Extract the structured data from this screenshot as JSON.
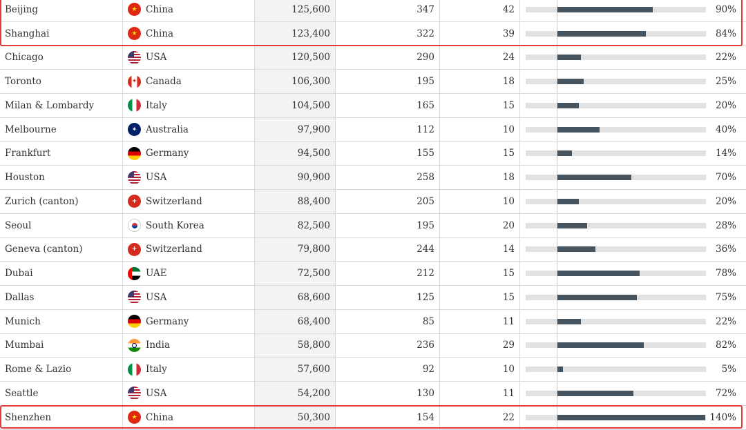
{
  "rows": [
    {
      "city": "Beijing",
      "country": "China",
      "flag": "china-flag-icon",
      "pop": "125,600",
      "n1": "347",
      "n2": "42",
      "pct_value": 90,
      "pct": "90%"
    },
    {
      "city": "Shanghai",
      "country": "China",
      "flag": "china-flag-icon",
      "pop": "123,400",
      "n1": "322",
      "n2": "39",
      "pct_value": 84,
      "pct": "84%"
    },
    {
      "city": "Chicago",
      "country": "USA",
      "flag": "usa-flag-icon",
      "pop": "120,500",
      "n1": "290",
      "n2": "24",
      "pct_value": 22,
      "pct": "22%"
    },
    {
      "city": "Toronto",
      "country": "Canada",
      "flag": "canada-flag-icon",
      "pop": "106,300",
      "n1": "195",
      "n2": "18",
      "pct_value": 25,
      "pct": "25%"
    },
    {
      "city": "Milan & Lombardy",
      "country": "Italy",
      "flag": "italy-flag-icon",
      "pop": "104,500",
      "n1": "165",
      "n2": "15",
      "pct_value": 20,
      "pct": "20%"
    },
    {
      "city": "Melbourne",
      "country": "Australia",
      "flag": "australia-flag-icon",
      "pop": "97,900",
      "n1": "112",
      "n2": "10",
      "pct_value": 40,
      "pct": "40%"
    },
    {
      "city": "Frankfurt",
      "country": "Germany",
      "flag": "germany-flag-icon",
      "pop": "94,500",
      "n1": "155",
      "n2": "15",
      "pct_value": 14,
      "pct": "14%"
    },
    {
      "city": "Houston",
      "country": "USA",
      "flag": "usa-flag-icon",
      "pop": "90,900",
      "n1": "258",
      "n2": "18",
      "pct_value": 70,
      "pct": "70%"
    },
    {
      "city": "Zurich (canton)",
      "country": "Switzerland",
      "flag": "switzerland-flag-icon",
      "pop": "88,400",
      "n1": "205",
      "n2": "10",
      "pct_value": 20,
      "pct": "20%"
    },
    {
      "city": "Seoul",
      "country": "South Korea",
      "flag": "south-korea-flag-icon",
      "pop": "82,500",
      "n1": "195",
      "n2": "20",
      "pct_value": 28,
      "pct": "28%"
    },
    {
      "city": "Geneva (canton)",
      "country": "Switzerland",
      "flag": "switzerland-flag-icon",
      "pop": "79,800",
      "n1": "244",
      "n2": "14",
      "pct_value": 36,
      "pct": "36%"
    },
    {
      "city": "Dubai",
      "country": "UAE",
      "flag": "uae-flag-icon",
      "pop": "72,500",
      "n1": "212",
      "n2": "15",
      "pct_value": 78,
      "pct": "78%"
    },
    {
      "city": "Dallas",
      "country": "USA",
      "flag": "usa-flag-icon",
      "pop": "68,600",
      "n1": "125",
      "n2": "15",
      "pct_value": 75,
      "pct": "75%"
    },
    {
      "city": "Munich",
      "country": "Germany",
      "flag": "germany-flag-icon",
      "pop": "68,400",
      "n1": "85",
      "n2": "11",
      "pct_value": 22,
      "pct": "22%"
    },
    {
      "city": "Mumbai",
      "country": "India",
      "flag": "india-flag-icon",
      "pop": "58,800",
      "n1": "236",
      "n2": "29",
      "pct_value": 82,
      "pct": "82%"
    },
    {
      "city": "Rome & Lazio",
      "country": "Italy",
      "flag": "italy-flag-icon",
      "pop": "57,600",
      "n1": "92",
      "n2": "10",
      "pct_value": 5,
      "pct": "5%"
    },
    {
      "city": "Seattle",
      "country": "USA",
      "flag": "usa-flag-icon",
      "pop": "54,200",
      "n1": "130",
      "n2": "11",
      "pct_value": 72,
      "pct": "72%"
    },
    {
      "city": "Shenzhen",
      "country": "China",
      "flag": "china-flag-icon",
      "pop": "50,300",
      "n1": "154",
      "n2": "22",
      "pct_value": 140,
      "pct": "140%"
    }
  ],
  "highlighted_rows": [
    "Beijing",
    "Shanghai",
    "Shenzhen"
  ],
  "colors": {
    "bar_fill": "#465460",
    "bar_track": "#e2e2e2",
    "highlight": "#e53a3a",
    "pop_column_bg": "#f3f3f3"
  }
}
